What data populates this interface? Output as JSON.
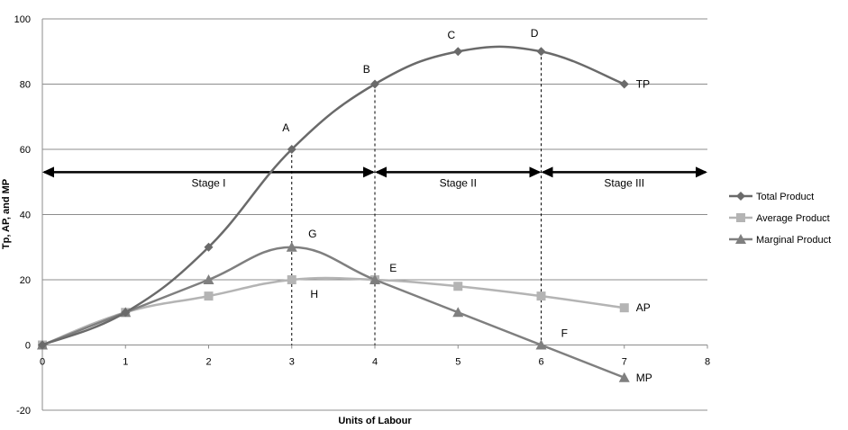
{
  "chart_data": {
    "type": "line",
    "title": "",
    "xlabel": "Units of Labour",
    "ylabel": "Tp, AP, and MP",
    "xlim": [
      0,
      8
    ],
    "ylim": [
      -20,
      100
    ],
    "x_ticks": [
      "0",
      "1",
      "2",
      "3",
      "4",
      "5",
      "6",
      "7",
      "8"
    ],
    "y_ticks": [
      "-20",
      "0",
      "20",
      "40",
      "60",
      "80",
      "100"
    ],
    "grid": "horizontal",
    "legend_position": "right",
    "series": [
      {
        "name": "Total Product",
        "marker": "diamond",
        "color": "#6a6a6a",
        "x": [
          0,
          1,
          2,
          3,
          4,
          5,
          6,
          7
        ],
        "values": [
          0,
          10,
          30,
          60,
          80,
          90,
          90,
          80
        ],
        "end_label": "TP"
      },
      {
        "name": "Average Product",
        "marker": "square",
        "color": "#b4b4b4",
        "x": [
          0,
          1,
          2,
          3,
          4,
          5,
          6,
          7
        ],
        "values": [
          0,
          10,
          15,
          20,
          20,
          18,
          15,
          11.4
        ],
        "end_label": "AP"
      },
      {
        "name": "Marginal Product",
        "marker": "triangle",
        "color": "#7f7f7f",
        "x": [
          0,
          1,
          2,
          3,
          4,
          5,
          6,
          7
        ],
        "values": [
          0,
          10,
          20,
          30,
          20,
          10,
          0,
          -10
        ],
        "end_label": "MP"
      }
    ],
    "vertical_dashed_lines": [
      3,
      4,
      6
    ],
    "stages": {
      "y": 53,
      "boundaries": [
        0,
        4,
        6,
        8
      ],
      "labels": [
        "Stage I",
        "Stage II",
        "Stage III"
      ]
    },
    "point_labels": [
      {
        "text": "A",
        "x": 2.93,
        "y": 65.5
      },
      {
        "text": "B",
        "x": 3.9,
        "y": 83.5
      },
      {
        "text": "C",
        "x": 4.92,
        "y": 94
      },
      {
        "text": "D",
        "x": 5.92,
        "y": 94.5
      },
      {
        "text": "G",
        "x": 3.25,
        "y": 33
      },
      {
        "text": "H",
        "x": 3.27,
        "y": 14.5
      },
      {
        "text": "E",
        "x": 4.22,
        "y": 22.5
      },
      {
        "text": "F",
        "x": 6.28,
        "y": 2.5
      }
    ]
  }
}
